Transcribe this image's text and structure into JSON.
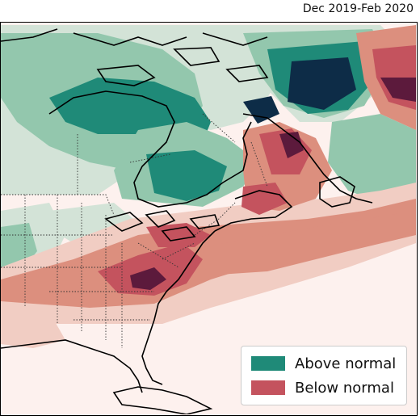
{
  "title": "Dec 2019-Feb 2020",
  "legend": {
    "items": [
      {
        "label": "Above normal",
        "color": "#1f8a78"
      },
      {
        "label": "Below normal",
        "color": "#c4535e"
      }
    ]
  },
  "colors": {
    "background": "#fdf1ee",
    "above_light": "#d3e3d7",
    "above_mid": "#93c7ad",
    "above_strong": "#1f8a78",
    "above_darkest": "#0d2c47",
    "below_light": "#f1cdc3",
    "below_mid": "#dc8f7e",
    "below_strong": "#c4535e",
    "below_darkest": "#5c1a3c",
    "coastline": "#000000",
    "borders": "#333333"
  }
}
